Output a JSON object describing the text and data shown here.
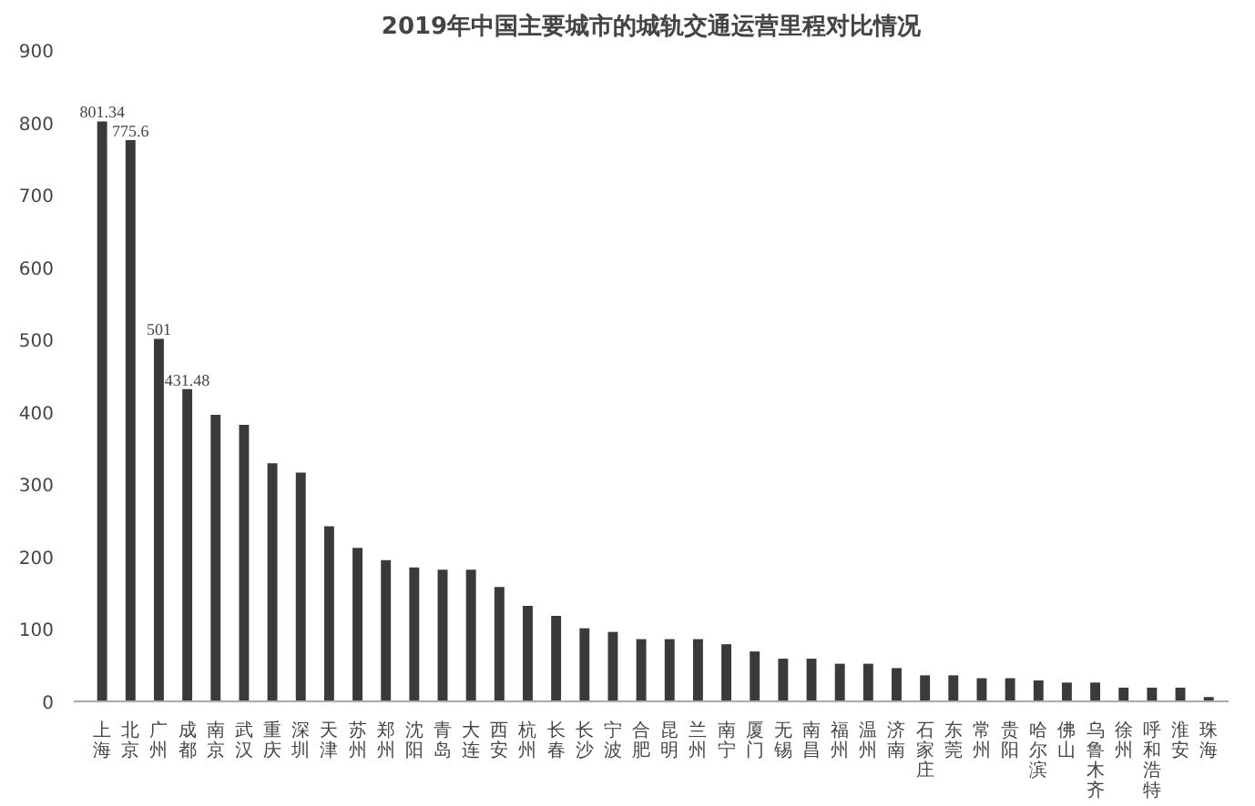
{
  "chart_data": {
    "type": "bar",
    "title": "2019年中国主要城市的城轨交通运营里程对比情况",
    "categories": [
      "上海",
      "北京",
      "广州",
      "成都",
      "南京",
      "武汉",
      "重庆",
      "深圳",
      "天津",
      "苏州",
      "郑州",
      "沈阳",
      "青岛",
      "大连",
      "西安",
      "杭州",
      "长春",
      "长沙",
      "宁波",
      "合肥",
      "昆明",
      "兰州",
      "南宁",
      "厦门",
      "无锡",
      "南昌",
      "福州",
      "温州",
      "济南",
      "石家庄",
      "东莞",
      "常州",
      "贵阳",
      "哈尔滨",
      "佛山",
      "乌鲁木齐",
      "徐州",
      "呼和浩特",
      "淮安",
      "珠海"
    ],
    "values": [
      801.34,
      775.6,
      501,
      431.48,
      396,
      382,
      329,
      316,
      242,
      212,
      195,
      185,
      182,
      182,
      158,
      132,
      118,
      101,
      96,
      86,
      86,
      86,
      79,
      69,
      59,
      59,
      52,
      52,
      46,
      36,
      36,
      32,
      32,
      29,
      26,
      26,
      19,
      19,
      19,
      6
    ],
    "value_labels": [
      "801.34",
      "775.6",
      "501",
      "431.48",
      null,
      null,
      null,
      null,
      null,
      null,
      null,
      null,
      null,
      null,
      null,
      null,
      null,
      null,
      null,
      null,
      null,
      null,
      null,
      null,
      null,
      null,
      null,
      null,
      null,
      null,
      null,
      null,
      null,
      null,
      null,
      null,
      null,
      null,
      null,
      null
    ],
    "color": "#3a3a3a",
    "ylim": [
      0,
      900
    ],
    "yticks": [
      0,
      100,
      200,
      300,
      400,
      500,
      600,
      700,
      800,
      900
    ],
    "grid": false
  }
}
